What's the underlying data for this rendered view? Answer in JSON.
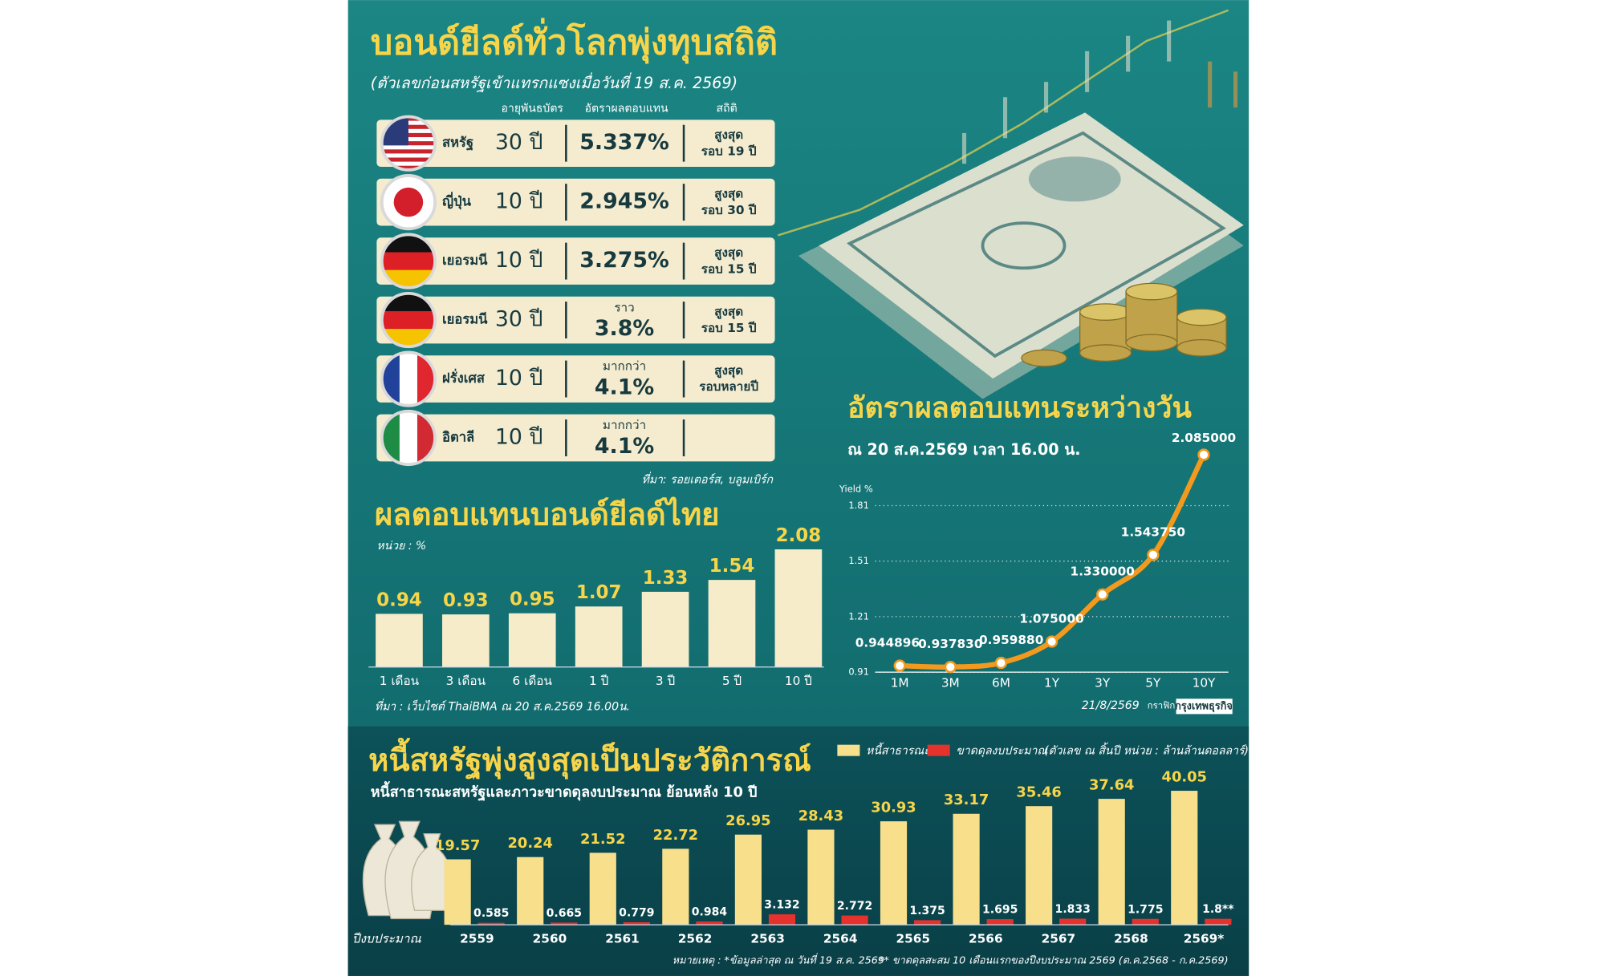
{
  "header": {
    "title": "บอนด์ยีลด์ทั่วโลกพุ่งทุบสถิติ",
    "subtitle": "(ตัวเลขก่อนสหรัฐเข้าแทรกแซงเมื่อวันที่ 19 ส.ค. 2569)"
  },
  "table": {
    "columns": [
      "อายุพันธบัตร",
      "อัตราผลตอบแทน",
      "สถิติ"
    ],
    "rows": [
      {
        "country": "สหรัฐ",
        "tenor": "30 ปี",
        "yield": "5.337%",
        "record": [
          "สูงสุด",
          "รอบ 19 ปี"
        ]
      },
      {
        "country": "ญี่ปุ่น",
        "tenor": "10 ปี",
        "yield": "2.945%",
        "record": [
          "สูงสุด",
          "รอบ 30 ปี"
        ]
      },
      {
        "country": "เยอรมนี",
        "tenor": "10 ปี",
        "yield": "3.275%",
        "record": [
          "สูงสุด",
          "รอบ 15 ปี"
        ]
      },
      {
        "country": "เยอรมนี",
        "tenor": "30 ปี",
        "qualifier": "ราว",
        "yield": "3.8%",
        "record": [
          "สูงสุด",
          "รอบ 15 ปี"
        ]
      },
      {
        "country": "ฝรั่งเศส",
        "tenor": "10 ปี",
        "qualifier": "มากกว่า",
        "yield": "4.1%",
        "record": [
          "สูงสุด",
          "รอบหลายปี"
        ]
      },
      {
        "country": "อิตาลี",
        "tenor": "10 ปี",
        "qualifier": "มากกว่า",
        "yield": "4.1%"
      }
    ],
    "source": "ที่มา: รอยเตอร์ส, บลูมเบิร์ก"
  },
  "chart_data": [
    {
      "type": "bar",
      "title": "ผลตอบแทนบอนด์ยีลด์ไทย",
      "unit": "หน่วย : %",
      "categories": [
        "1 เดือน",
        "3 เดือน",
        "6 เดือน",
        "1 ปี",
        "3 ปี",
        "5 ปี",
        "10 ปี"
      ],
      "values": [
        0.94,
        0.93,
        0.95,
        1.07,
        1.33,
        1.54,
        2.08
      ],
      "color": "#f6ecc9",
      "source": "ที่มา : เว็บไซต์ ThaiBMA ณ 20 ส.ค.2569 16.00น."
    },
    {
      "type": "line",
      "title": "อัตราผลตอบแทนระหว่างวัน",
      "subtitle": "ณ 20 ส.ค.2569 เวลา 16.00 น.",
      "ylabel": "Yield %",
      "categories": [
        "1M",
        "3M",
        "6M",
        "1Y",
        "3Y",
        "5Y",
        "10Y"
      ],
      "values": [
        0.944896,
        0.93783,
        0.95988,
        1.075,
        1.33,
        1.54375,
        2.085
      ],
      "value_labels": [
        "0.944896",
        "0.937830",
        "0.959880",
        "1.075000",
        "1.330000",
        "1.543750",
        "2.085000"
      ],
      "ylim": [
        0.91,
        2.11
      ],
      "yticks": [
        0.91,
        1.21,
        1.51,
        1.81
      ],
      "grid": true,
      "color": "#f39a1e",
      "date": "21/8/2569",
      "credit": "กราฟิก",
      "publisher": "กรุงเทพธุรกิจ"
    },
    {
      "type": "bar",
      "title": "หนี้สหรัฐพุ่งสูงสุดเป็นประวัติการณ์",
      "subtitle": "หนี้สาธารณะสหรัฐและภาวะขาดดุลงบประมาณ ย้อนหลัง 10 ปี",
      "note": "(ตัวเลข ณ สิ้นปี หน่วย : ล้านล้านดอลลาร์)",
      "xlabel": "ปีงบประมาณ",
      "categories": [
        "2559",
        "2560",
        "2561",
        "2562",
        "2563",
        "2564",
        "2565",
        "2566",
        "2567",
        "2568",
        "2569*"
      ],
      "series": [
        {
          "name": "หนี้สาธารณะ",
          "color": "#f8df8c",
          "values": [
            19.57,
            20.24,
            21.52,
            22.72,
            26.95,
            28.43,
            30.93,
            33.17,
            35.46,
            37.64,
            40.05
          ]
        },
        {
          "name": "ขาดดุลงบประมาณ",
          "color": "#e5322d",
          "values": [
            0.585,
            0.665,
            0.779,
            0.984,
            3.132,
            2.772,
            1.375,
            1.695,
            1.833,
            1.775,
            1.8
          ],
          "value_labels": [
            "0.585",
            "0.665",
            "0.779",
            "0.984",
            "3.132",
            "2.772",
            "1.375",
            "1.695",
            "1.833",
            "1.775",
            "1.8**"
          ]
        }
      ],
      "footnotes": [
        "หมายเหตุ : *ข้อมูลล่าสุด ณ วันที่ 19 ส.ค. 2569",
        "** ขาดดุลสะสม 10 เดือนแรกของปีงบประมาณ 2569 (ต.ค.2568 - ก.ค.2569)"
      ]
    }
  ]
}
